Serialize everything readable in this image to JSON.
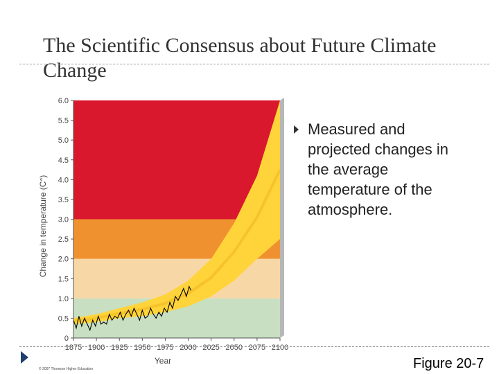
{
  "slide": {
    "title": "The Scientific Consensus about Future Climate Change",
    "bullet_text": "Measured and projected changes in the average temperature of the atmosphere.",
    "figure_label": "Figure 20-7",
    "copyright": "© 2007 Thomson Higher Education"
  },
  "colors": {
    "zone_red": "#d9182d",
    "zone_orange": "#f0912f",
    "zone_peach": "#f8d7a6",
    "zone_green": "#c8dfc1",
    "band_yellow": "#ffd43a",
    "band_center": "#f0b820",
    "measured_line": "#000000"
  },
  "chart_data": {
    "type": "line",
    "xlabel": "Year",
    "ylabel": "Change in temperature (C°)",
    "xlim": [
      1875,
      2100
    ],
    "ylim": [
      0,
      6
    ],
    "x_ticks": [
      "1875",
      "1900",
      "1925",
      "1950",
      "1975",
      "2000",
      "2025",
      "2050",
      "2075",
      "2100"
    ],
    "y_ticks": [
      "0",
      "0.5",
      "1.0",
      "1.5",
      "2.0",
      "2.5",
      "3.0",
      "3.5",
      "4.0",
      "4.5",
      "5.0",
      "5.5",
      "6.0"
    ],
    "zones": [
      {
        "from": 0,
        "to": 1.0,
        "color": "#c8dfc1"
      },
      {
        "from": 1.0,
        "to": 2.0,
        "color": "#f8d7a6"
      },
      {
        "from": 2.0,
        "to": 3.0,
        "color": "#f0912f"
      },
      {
        "from": 3.0,
        "to": 6.0,
        "color": "#d9182d"
      }
    ],
    "projection_band": {
      "x": [
        1875,
        1900,
        1925,
        1950,
        1975,
        2000,
        2025,
        2050,
        2075,
        2100
      ],
      "lower": [
        0.35,
        0.4,
        0.5,
        0.55,
        0.65,
        0.8,
        1.05,
        1.45,
        2.0,
        2.5
      ],
      "upper": [
        0.5,
        0.6,
        0.75,
        0.9,
        1.1,
        1.45,
        2.0,
        2.9,
        4.1,
        6.0
      ]
    },
    "measured": {
      "x": [
        1875,
        1878,
        1881,
        1884,
        1887,
        1890,
        1893,
        1896,
        1899,
        1902,
        1905,
        1908,
        1911,
        1914,
        1917,
        1920,
        1923,
        1926,
        1929,
        1932,
        1935,
        1938,
        1941,
        1944,
        1947,
        1950,
        1953,
        1956,
        1959,
        1962,
        1965,
        1968,
        1971,
        1974,
        1977,
        1980,
        1983,
        1986,
        1989,
        1992,
        1995,
        1998,
        2001,
        2003
      ],
      "y": [
        0.45,
        0.25,
        0.55,
        0.3,
        0.5,
        0.35,
        0.2,
        0.45,
        0.3,
        0.55,
        0.35,
        0.4,
        0.35,
        0.6,
        0.45,
        0.55,
        0.5,
        0.65,
        0.45,
        0.6,
        0.7,
        0.55,
        0.75,
        0.6,
        0.45,
        0.7,
        0.5,
        0.55,
        0.75,
        0.6,
        0.5,
        0.65,
        0.55,
        0.75,
        0.65,
        0.9,
        0.75,
        1.05,
        0.95,
        1.1,
        1.25,
        1.05,
        1.3,
        1.2
      ]
    }
  }
}
